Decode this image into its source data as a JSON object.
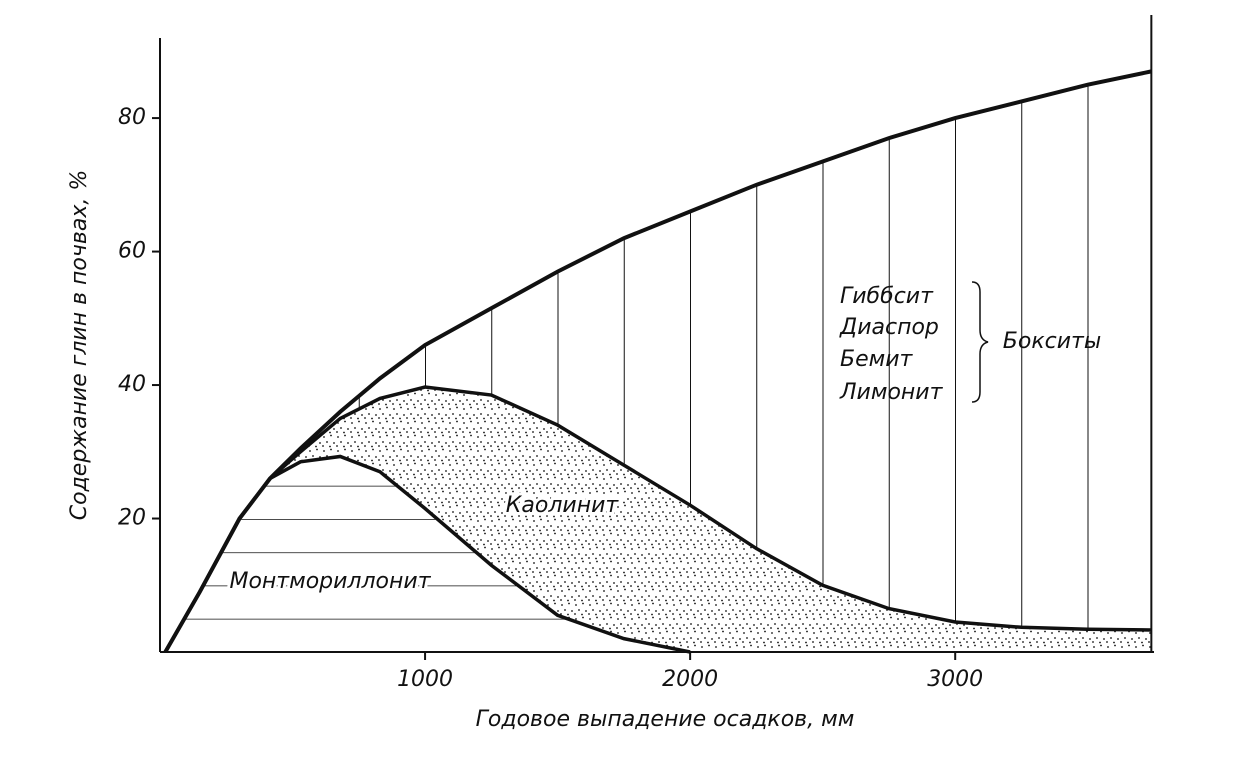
{
  "chart_data": {
    "type": "line",
    "x_label": "Годовое выпадение осадков, мм",
    "y_label": "Содержание глин в почвах, %",
    "x": [
      20,
      150,
      300,
      415,
      530,
      680,
      830,
      1000,
      1250,
      1500,
      1750,
      2000,
      2250,
      2500,
      2750,
      3000,
      3250,
      3500,
      3740
    ],
    "xlim": [
      0,
      3750
    ],
    "ylim": [
      0,
      92
    ],
    "xticks": [
      1000,
      2000,
      3000
    ],
    "yticks": [
      20,
      40,
      60,
      80
    ],
    "series": [
      {
        "name": "Монтмориллонит",
        "color": "#111111",
        "fill": "horizontal-hatch",
        "values": [
          0,
          9,
          20,
          26,
          28.5,
          29.3,
          27,
          21.5,
          13,
          5.5,
          2,
          0,
          null,
          null,
          null,
          null,
          null,
          null,
          null
        ]
      },
      {
        "name": "Каолинит",
        "color": "#111111",
        "fill": "dots",
        "values": [
          0,
          9,
          20,
          26,
          30,
          35,
          38,
          39.7,
          38.5,
          34,
          28,
          22,
          15.5,
          10,
          6.5,
          4.5,
          3.7,
          3.4,
          3.3
        ]
      },
      {
        "name": "Бокситы",
        "color": "#111111",
        "fill": "vertical-hatch",
        "values": [
          0,
          9,
          20,
          26,
          30.5,
          36,
          41,
          46,
          51.5,
          57,
          62,
          66,
          70,
          73.5,
          77,
          80,
          82.5,
          85,
          87
        ]
      }
    ],
    "annotations": [
      "Гиббсит",
      "Диаспор",
      "Бемит",
      "Лимонит"
    ]
  }
}
